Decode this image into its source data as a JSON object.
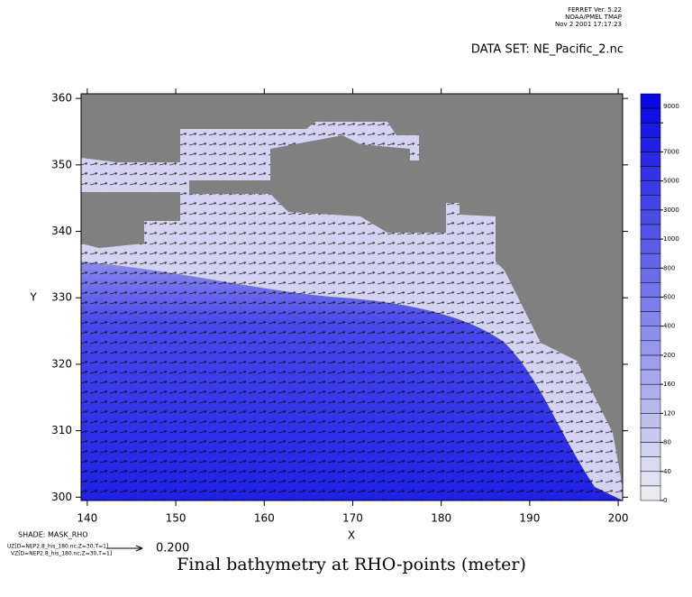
{
  "chart_data": {
    "type": "vector-shade",
    "header": [
      "FERRET Ver. 5.22",
      "NOAA/PMEL TMAP",
      "Nov  2 2001 17:17:23"
    ],
    "dataset": "DATA SET: NE_Pacific_2.nc",
    "title": "Final bathymetry at RHO-points (meter)",
    "xlabel": "X",
    "ylabel": "Y",
    "shade_label": "SHADE: MASK_RHO",
    "vector_labels": [
      "UZ[D=NEP2.8_his_180.nc,Z=30,T=1]",
      "VZ[D=NEP2.8_his_180.nc,Z=30,T=1]"
    ],
    "vector_scale": "0.200",
    "xlim": [
      139.3,
      200.5
    ],
    "xticks": [
      140,
      150,
      160,
      170,
      180,
      190,
      200
    ],
    "ylim": [
      299.5,
      360.7
    ],
    "yticks": [
      300,
      310,
      320,
      330,
      340,
      350,
      360
    ],
    "colorbar_levels": [
      0,
      40,
      80,
      120,
      160,
      200,
      400,
      600,
      800,
      1000,
      3000,
      5000,
      7000,
      9000
    ],
    "colorbar_colors": [
      "#f2f2f2",
      "#0808e4"
    ],
    "land_color": "#808080"
  }
}
